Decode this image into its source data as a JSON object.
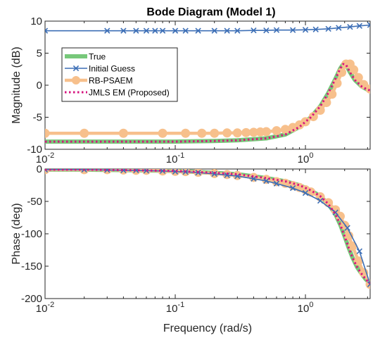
{
  "chart_data": [
    {
      "type": "line",
      "title": "Bode Diagram (Model 1)",
      "xlabel": "",
      "ylabel": "Magnitude (dB)",
      "xscale": "log",
      "xlim": [
        0.01,
        3.14
      ],
      "ylim": [
        -10,
        10
      ],
      "xticks": [
        0.01,
        0.1,
        1
      ],
      "xtick_labels": [
        {
          "base": "10",
          "exp": "-2"
        },
        {
          "base": "10",
          "exp": "-1"
        },
        {
          "base": "10",
          "exp": "0"
        }
      ],
      "yticks": [
        -10,
        -5,
        0,
        5,
        10
      ],
      "ytick_labels": [
        "-10",
        "-5",
        "0",
        "5",
        "10"
      ],
      "grid": false,
      "legend": {
        "position": "left",
        "entries": [
          "True",
          "Initial Guess",
          "RB-PSAEM",
          "JMLS EM (Proposed)"
        ]
      },
      "series": [
        {
          "name": "True",
          "color": "#77c87a",
          "style": "thick",
          "x": [
            0.01,
            0.02,
            0.05,
            0.1,
            0.2,
            0.3,
            0.5,
            0.7,
            0.9,
            1.1,
            1.3,
            1.5,
            1.7,
            1.85,
            1.95,
            2.05,
            2.2,
            2.4,
            2.7,
            3.0,
            3.14
          ],
          "y": [
            -8.8,
            -8.8,
            -8.8,
            -8.8,
            -8.7,
            -8.6,
            -8.3,
            -7.7,
            -6.5,
            -5.0,
            -3.3,
            -1.2,
            1.0,
            2.6,
            3.3,
            3.2,
            2.0,
            0.8,
            -0.2,
            -0.7,
            -0.8
          ]
        },
        {
          "name": "Initial Guess",
          "color": "#3d6fb6",
          "marker": "x",
          "x": [
            0.01,
            0.03,
            0.04,
            0.05,
            0.06,
            0.07,
            0.08,
            0.1,
            0.12,
            0.15,
            0.2,
            0.25,
            0.3,
            0.4,
            0.5,
            0.6,
            0.8,
            1.0,
            1.2,
            1.5,
            1.8,
            2.2,
            2.6,
            3.14
          ],
          "y": [
            8.5,
            8.5,
            8.5,
            8.5,
            8.5,
            8.5,
            8.5,
            8.5,
            8.5,
            8.5,
            8.5,
            8.5,
            8.5,
            8.55,
            8.55,
            8.6,
            8.6,
            8.65,
            8.7,
            8.8,
            8.95,
            9.1,
            9.25,
            9.4
          ]
        },
        {
          "name": "RB-PSAEM",
          "color": "#f7c08c",
          "marker": "o",
          "style": "thick",
          "x": [
            0.01,
            0.02,
            0.04,
            0.08,
            0.12,
            0.16,
            0.2,
            0.25,
            0.3,
            0.35,
            0.4,
            0.45,
            0.5,
            0.6,
            0.7,
            0.8,
            0.9,
            1.0,
            1.15,
            1.3,
            1.45,
            1.6,
            1.75,
            1.9,
            2.05,
            2.2,
            2.35,
            2.55,
            2.8,
            3.14
          ],
          "y": [
            -7.5,
            -7.5,
            -7.5,
            -7.5,
            -7.5,
            -7.5,
            -7.5,
            -7.45,
            -7.45,
            -7.4,
            -7.35,
            -7.3,
            -7.25,
            -7.1,
            -6.9,
            -6.6,
            -6.2,
            -5.7,
            -4.9,
            -3.9,
            -2.7,
            -1.4,
            0.3,
            2.0,
            3.3,
            3.3,
            2.4,
            1.2,
            0.1,
            -0.6
          ]
        },
        {
          "name": "JMLS EM (Proposed)",
          "color": "#d6157f",
          "style": "dotted",
          "x": [
            0.01,
            0.02,
            0.05,
            0.1,
            0.2,
            0.3,
            0.5,
            0.7,
            0.9,
            1.1,
            1.3,
            1.5,
            1.7,
            1.85,
            1.95,
            2.05,
            2.2,
            2.4,
            2.7,
            3.0,
            3.14
          ],
          "y": [
            -8.8,
            -8.8,
            -8.8,
            -8.8,
            -8.7,
            -8.6,
            -8.3,
            -7.7,
            -6.5,
            -5.0,
            -3.3,
            -1.2,
            1.0,
            2.6,
            3.3,
            3.2,
            2.0,
            0.8,
            -0.2,
            -0.7,
            -0.8
          ]
        }
      ]
    },
    {
      "type": "line",
      "title": "",
      "xlabel": "Frequency (rad/s)",
      "ylabel": "Phase (deg)",
      "xscale": "log",
      "xlim": [
        0.01,
        3.14
      ],
      "ylim": [
        -200,
        0
      ],
      "xticks": [
        0.01,
        0.1,
        1
      ],
      "xtick_labels": [
        {
          "base": "10",
          "exp": "-2"
        },
        {
          "base": "10",
          "exp": "-1"
        },
        {
          "base": "10",
          "exp": "0"
        }
      ],
      "yticks": [
        -200,
        -150,
        -100,
        -50,
        0
      ],
      "ytick_labels": [
        "-200",
        "-150",
        "-100",
        "-50",
        "0"
      ],
      "grid": false,
      "series": [
        {
          "name": "True",
          "color": "#77c87a",
          "style": "thick",
          "x": [
            0.01,
            0.02,
            0.05,
            0.1,
            0.2,
            0.3,
            0.5,
            0.7,
            0.9,
            1.1,
            1.3,
            1.5,
            1.7,
            1.85,
            2.0,
            2.15,
            2.3,
            2.5,
            2.7,
            2.9,
            3.14
          ],
          "y": [
            -1,
            -1,
            -2,
            -3,
            -6,
            -8,
            -14,
            -19,
            -25,
            -33,
            -42,
            -54,
            -70,
            -86,
            -104,
            -122,
            -137,
            -152,
            -162,
            -170,
            -177
          ]
        },
        {
          "name": "Initial Guess",
          "color": "#3d6fb6",
          "marker": "x",
          "x": [
            0.01,
            0.02,
            0.03,
            0.04,
            0.05,
            0.06,
            0.08,
            0.1,
            0.12,
            0.15,
            0.2,
            0.25,
            0.3,
            0.4,
            0.5,
            0.6,
            0.8,
            1.0,
            1.3,
            1.7,
            2.1,
            2.6,
            3.14
          ],
          "y": [
            -1,
            -1,
            -1.5,
            -2,
            -2,
            -2.5,
            -3,
            -4,
            -4.5,
            -5.5,
            -7.5,
            -9.5,
            -11,
            -15,
            -18.5,
            -22.5,
            -29.5,
            -37,
            -49,
            -67,
            -91,
            -127,
            -178
          ]
        },
        {
          "name": "RB-PSAEM",
          "color": "#f7c08c",
          "marker": "o",
          "style": "thick",
          "x": [
            0.01,
            0.02,
            0.03,
            0.04,
            0.05,
            0.06,
            0.08,
            0.1,
            0.12,
            0.15,
            0.2,
            0.25,
            0.3,
            0.4,
            0.5,
            0.6,
            0.7,
            0.8,
            0.9,
            1.0,
            1.1,
            1.3,
            1.5,
            1.7,
            1.85,
            2.0,
            2.15,
            2.3,
            2.55,
            2.8,
            3.14
          ],
          "y": [
            -1,
            -1,
            -1,
            -1.5,
            -2,
            -2,
            -3,
            -3.5,
            -4,
            -5,
            -7,
            -8.5,
            -10,
            -13,
            -16,
            -19.5,
            -22,
            -25.5,
            -28.5,
            -32,
            -35.5,
            -43,
            -52,
            -63,
            -73,
            -87,
            -103,
            -119,
            -142,
            -160,
            -178
          ]
        },
        {
          "name": "JMLS EM (Proposed)",
          "color": "#d6157f",
          "style": "dotted",
          "x": [
            0.01,
            0.02,
            0.05,
            0.1,
            0.2,
            0.3,
            0.5,
            0.7,
            0.9,
            1.1,
            1.3,
            1.5,
            1.7,
            1.85,
            2.0,
            2.15,
            2.3,
            2.5,
            2.7,
            2.9,
            3.14
          ],
          "y": [
            -1,
            -1,
            -2,
            -3,
            -6,
            -8,
            -14,
            -19,
            -25,
            -33,
            -42,
            -54,
            -70,
            -86,
            -104,
            -122,
            -137,
            -152,
            -162,
            -170,
            -177
          ]
        }
      ]
    }
  ]
}
